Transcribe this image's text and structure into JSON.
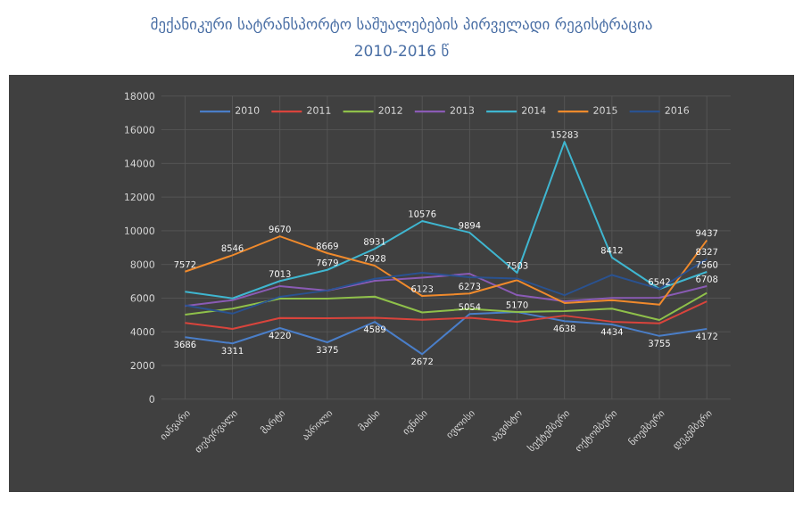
{
  "chart_data": {
    "type": "line",
    "title": "მექანიკური სატრანსპორტო საშუალებების პირველადი რეგისტრაცია",
    "subtitle": "2010-2016 წ",
    "categories": [
      "იანვარი",
      "თებერვალი",
      "მარტი",
      "აპრილი",
      "მაისი",
      "ივნისი",
      "ივლისი",
      "აგვისტო",
      "სექტემბერი",
      "ოქტომბერი",
      "ნოემბერი",
      "დეკემბერი"
    ],
    "series": [
      {
        "name": "2010",
        "color": "#4a7ec8",
        "values": [
          3686,
          3311,
          4220,
          3375,
          4589,
          2672,
          5054,
          5170,
          4638,
          4434,
          3755,
          4172
        ],
        "value_labels": [
          "3686",
          "3311",
          "4220",
          "3375",
          "4589",
          "2672",
          "5054",
          "5170",
          "4638",
          "4434",
          "3755",
          "4172"
        ]
      },
      {
        "name": "2011",
        "color": "#d9443c",
        "values": [
          4523,
          4174,
          4817,
          4810,
          4827,
          4716,
          4828,
          4589,
          4958,
          4600,
          4500,
          5800
        ],
        "value_labels": [
          null,
          null,
          null,
          null,
          null,
          null,
          null,
          null,
          null,
          null,
          null,
          null
        ]
      },
      {
        "name": "2012",
        "color": "#8fc04a",
        "values": [
          5023,
          5374,
          5968,
          5968,
          6093,
          5148,
          5365,
          5179,
          5229,
          5375,
          4700,
          6308
        ],
        "value_labels": [
          null,
          null,
          null,
          null,
          null,
          null,
          null,
          null,
          null,
          null,
          null,
          null
        ]
      },
      {
        "name": "2013",
        "color": "#8a5bb5",
        "values": [
          5539,
          5875,
          6717,
          6445,
          7031,
          7214,
          7448,
          6177,
          5815,
          6005,
          6019,
          6708
        ],
        "value_labels": [
          null,
          null,
          null,
          null,
          null,
          null,
          null,
          null,
          null,
          null,
          null,
          "6708"
        ]
      },
      {
        "name": "2014",
        "color": "#3fb6d0",
        "values": [
          6386,
          5986,
          7013,
          7679,
          8931,
          10576,
          9894,
          7503,
          15283,
          8412,
          6542,
          7560
        ],
        "value_labels": [
          null,
          null,
          "7013",
          "7679",
          "8931",
          "10576",
          "9894",
          "7503",
          "15283",
          "8412",
          "6542",
          "7560"
        ]
      },
      {
        "name": "2015",
        "color": "#f08a2c",
        "values": [
          7572,
          8546,
          9670,
          8669,
          7928,
          6123,
          6273,
          7067,
          5712,
          5879,
          5610,
          9437
        ],
        "value_labels": [
          "7572",
          "8546",
          "9670",
          "8669",
          "7928",
          "6123",
          "6273",
          null,
          null,
          null,
          null,
          "9437"
        ]
      },
      {
        "name": "2016",
        "color": "#2a5290",
        "values": [
          5571,
          5080,
          6080,
          6453,
          7145,
          7503,
          7244,
          7168,
          6175,
          7376,
          6546,
          8327
        ],
        "value_labels": [
          null,
          null,
          null,
          null,
          null,
          null,
          null,
          null,
          null,
          null,
          null,
          "8327"
        ]
      }
    ],
    "ylim": [
      0,
      18000
    ],
    "yticks": [
      0,
      2000,
      4000,
      6000,
      8000,
      10000,
      12000,
      14000,
      16000,
      18000
    ],
    "grid": true,
    "legend": "top",
    "marker": "none",
    "line_style": "solid"
  }
}
